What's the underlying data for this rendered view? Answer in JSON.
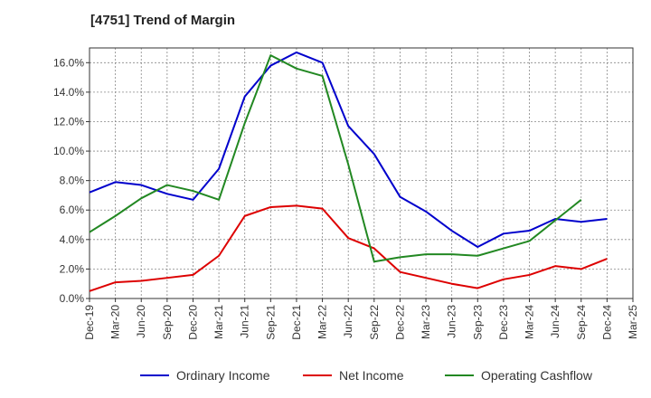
{
  "title": "[4751]  Trend of Margin",
  "chart_data": {
    "type": "line",
    "title": "[4751]  Trend of Margin",
    "x": [
      "Dec-19",
      "Mar-20",
      "Jun-20",
      "Sep-20",
      "Dec-20",
      "Mar-21",
      "Jun-21",
      "Sep-21",
      "Dec-21",
      "Mar-22",
      "Jun-22",
      "Sep-22",
      "Dec-22",
      "Mar-23",
      "Jun-23",
      "Sep-23",
      "Dec-23",
      "Mar-24",
      "Jun-24",
      "Sep-24",
      "Dec-24",
      "Mar-25"
    ],
    "ylim": [
      0,
      17
    ],
    "yticks": [
      0,
      2,
      4,
      6,
      8,
      10,
      12,
      14,
      16
    ],
    "ytick_labels": [
      "0.0%",
      "2.0%",
      "4.0%",
      "6.0%",
      "8.0%",
      "10.0%",
      "12.0%",
      "14.0%",
      "16.0%"
    ],
    "grid": true,
    "legend_position": "bottom",
    "series": [
      {
        "name": "Ordinary Income",
        "color": "#0000cc",
        "values": [
          7.2,
          7.9,
          7.7,
          7.1,
          6.7,
          8.8,
          13.7,
          15.8,
          16.7,
          16.0,
          11.7,
          9.8,
          6.9,
          5.9,
          4.6,
          3.5,
          4.4,
          4.6,
          5.4,
          5.2,
          5.4,
          null
        ]
      },
      {
        "name": "Net Income",
        "color": "#dd0000",
        "values": [
          0.5,
          1.1,
          1.2,
          1.4,
          1.6,
          2.9,
          5.6,
          6.2,
          6.3,
          6.1,
          4.1,
          3.4,
          1.8,
          1.4,
          1.0,
          0.7,
          1.3,
          1.6,
          2.2,
          2.0,
          2.7,
          null
        ]
      },
      {
        "name": "Operating Cashflow",
        "color": "#228822",
        "values": [
          4.5,
          5.6,
          6.8,
          7.7,
          7.3,
          6.7,
          11.9,
          16.5,
          15.6,
          15.1,
          9.1,
          2.5,
          2.8,
          3.0,
          3.0,
          2.9,
          3.4,
          3.9,
          5.3,
          6.7,
          null,
          null
        ]
      }
    ]
  }
}
